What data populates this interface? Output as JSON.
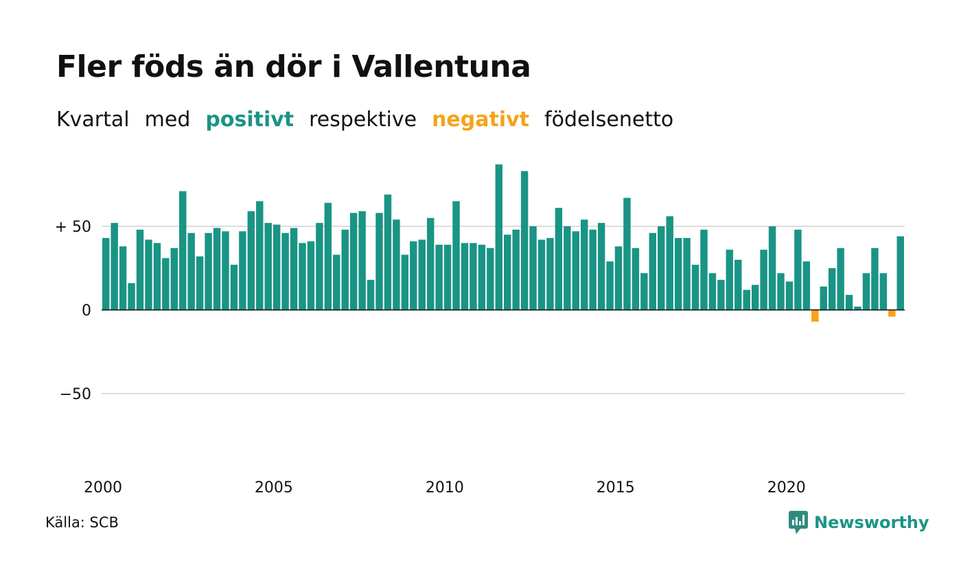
{
  "title": "Fler föds än dör i Vallentuna",
  "subtitle": {
    "part1": "Kvartal",
    "part2": "med",
    "positive": "positivt",
    "part3": "respektive",
    "negative": "negativt",
    "part4": "födelsenetto"
  },
  "colors": {
    "positive": "#1a9485",
    "negative": "#f5a31a",
    "grid": "#dddddd",
    "baseline": "#111111",
    "text": "#111111"
  },
  "source": "Källa: SCB",
  "brand": {
    "name": "Newsworthy",
    "icon": "newsworthy-logo-icon"
  },
  "chart_data": {
    "type": "bar",
    "title": "Fler föds än dör i Vallentuna",
    "xlabel": "",
    "ylabel": "",
    "grid": true,
    "ylim": [
      -80,
      90
    ],
    "yticks": [
      50,
      0,
      -50
    ],
    "ytick_labels": [
      "+ 50",
      "0",
      "−50"
    ],
    "xticks": [
      2000,
      2005,
      2010,
      2015,
      2020
    ],
    "xtick_labels": [
      "2000",
      "2005",
      "2010",
      "2015",
      "2020"
    ],
    "x_start": 2000,
    "periods_per_year": 4,
    "values": [
      43,
      52,
      38,
      16,
      48,
      42,
      40,
      31,
      37,
      71,
      46,
      32,
      46,
      49,
      47,
      27,
      47,
      59,
      65,
      52,
      51,
      46,
      49,
      40,
      41,
      52,
      64,
      33,
      48,
      58,
      59,
      18,
      58,
      69,
      54,
      33,
      41,
      42,
      55,
      39,
      39,
      65,
      40,
      40,
      39,
      37,
      87,
      45,
      48,
      83,
      50,
      42,
      43,
      61,
      50,
      47,
      54,
      48,
      52,
      29,
      38,
      67,
      37,
      22,
      46,
      50,
      56,
      43,
      43,
      27,
      48,
      22,
      18,
      36,
      30,
      12,
      15,
      36,
      50,
      22,
      17,
      48,
      29,
      -7,
      14,
      25,
      37,
      9,
      2,
      22,
      37,
      22,
      -4,
      44
    ]
  }
}
